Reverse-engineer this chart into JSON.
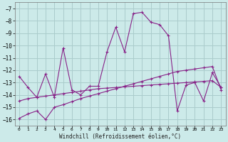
{
  "xlabel": "Windchill (Refroidissement éolien,°C)",
  "bg_color": "#cceae9",
  "grid_color": "#aacccc",
  "line_color": "#882288",
  "xlim": [
    -0.5,
    23.5
  ],
  "ylim": [
    -16.5,
    -6.5
  ],
  "yticks": [
    -16,
    -15,
    -14,
    -13,
    -12,
    -11,
    -10,
    -9,
    -8,
    -7
  ],
  "xticks": [
    0,
    1,
    2,
    3,
    4,
    5,
    6,
    7,
    8,
    9,
    10,
    11,
    12,
    13,
    14,
    15,
    16,
    17,
    18,
    19,
    20,
    21,
    22,
    23
  ],
  "series1_x": [
    0,
    1,
    2,
    3,
    4,
    5,
    6,
    7,
    8,
    9,
    10,
    11,
    12,
    13,
    14,
    15,
    16,
    17,
    18,
    19,
    20,
    21,
    22,
    23
  ],
  "series1_y": [
    -12.5,
    -13.4,
    -14.2,
    -12.3,
    -14.2,
    -10.2,
    -13.6,
    -14.0,
    -13.3,
    -13.3,
    -10.5,
    -8.5,
    -10.5,
    -7.4,
    -7.3,
    -8.1,
    -8.3,
    -9.2,
    -15.3,
    -13.2,
    -13.0,
    -14.5,
    -12.2,
    -13.4
  ],
  "series2_x": [
    0,
    1,
    2,
    3,
    4,
    5,
    6,
    7,
    8,
    9,
    10,
    11,
    12,
    13,
    14,
    15,
    16,
    17,
    18,
    19,
    20,
    21,
    22,
    23
  ],
  "series2_y": [
    -14.5,
    -14.3,
    -14.2,
    -14.1,
    -14.0,
    -13.9,
    -13.8,
    -13.7,
    -13.6,
    -13.5,
    -13.45,
    -13.4,
    -13.35,
    -13.3,
    -13.25,
    -13.2,
    -13.15,
    -13.1,
    -13.05,
    -13.0,
    -12.95,
    -12.9,
    -12.85,
    -13.4
  ],
  "series3_x": [
    0,
    1,
    2,
    3,
    4,
    5,
    6,
    7,
    8,
    9,
    10,
    11,
    12,
    13,
    14,
    15,
    16,
    17,
    18,
    19,
    20,
    21,
    22,
    23
  ],
  "series3_y": [
    -15.9,
    -15.55,
    -15.3,
    -16.0,
    -15.0,
    -14.8,
    -14.55,
    -14.3,
    -14.1,
    -13.9,
    -13.7,
    -13.5,
    -13.3,
    -13.1,
    -12.9,
    -12.7,
    -12.5,
    -12.3,
    -12.1,
    -12.0,
    -11.9,
    -11.8,
    -11.7,
    -13.6
  ]
}
